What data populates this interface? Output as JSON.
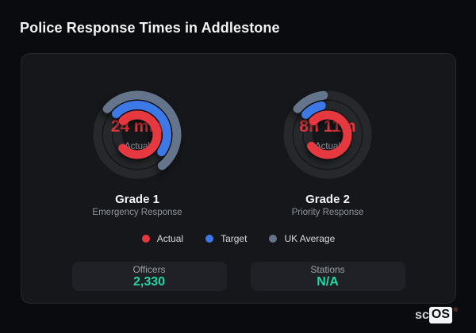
{
  "page_title": "Police Response Times in Addlestone",
  "legend": {
    "items": [
      {
        "label": "Actual",
        "color": "#e5393f"
      },
      {
        "label": "Target",
        "color": "#3d79e6"
      },
      {
        "label": "UK Average",
        "color": "#64748b"
      }
    ]
  },
  "stats": {
    "value_color": "#1fd8a4",
    "items": [
      {
        "label": "Officers",
        "value": "2,330"
      },
      {
        "label": "Stations",
        "value": "N/A"
      }
    ]
  },
  "brand": {
    "prefix": "sc",
    "name": "OS",
    "mark": "®"
  },
  "chart_data": [
    {
      "type": "radial-gauge",
      "title": "Grade 1",
      "subtitle": "Emergency Response",
      "center_value": "24 min",
      "center_label": "Actual",
      "value_color": "#e5393f",
      "track_color": "#26282c",
      "stroke_width": 11,
      "rings": [
        {
          "name": "UK Average",
          "color": "#64748b",
          "radius": 50,
          "start_deg": 311,
          "sweep_deg": 190
        },
        {
          "name": "Target",
          "color": "#3d79e6",
          "radius": 37.5,
          "start_deg": 315,
          "sweep_deg": 170
        },
        {
          "name": "Actual",
          "color": "#e5393f",
          "radius": 25,
          "start_deg": 315,
          "sweep_deg": 272
        }
      ]
    },
    {
      "type": "radial-gauge",
      "title": "Grade 2",
      "subtitle": "Priority Response",
      "center_value": "8h 11m",
      "center_label": "Actual",
      "value_color": "#e5393f",
      "track_color": "#26282c",
      "stroke_width": 11,
      "rings": [
        {
          "name": "UK Average",
          "color": "#64748b",
          "radius": 50,
          "start_deg": 311,
          "sweep_deg": 43
        },
        {
          "name": "Target",
          "color": "#3d79e6",
          "radius": 37.5,
          "start_deg": 313,
          "sweep_deg": 35
        },
        {
          "name": "Actual",
          "color": "#e5393f",
          "radius": 25,
          "start_deg": 314,
          "sweep_deg": 281
        }
      ]
    }
  ]
}
